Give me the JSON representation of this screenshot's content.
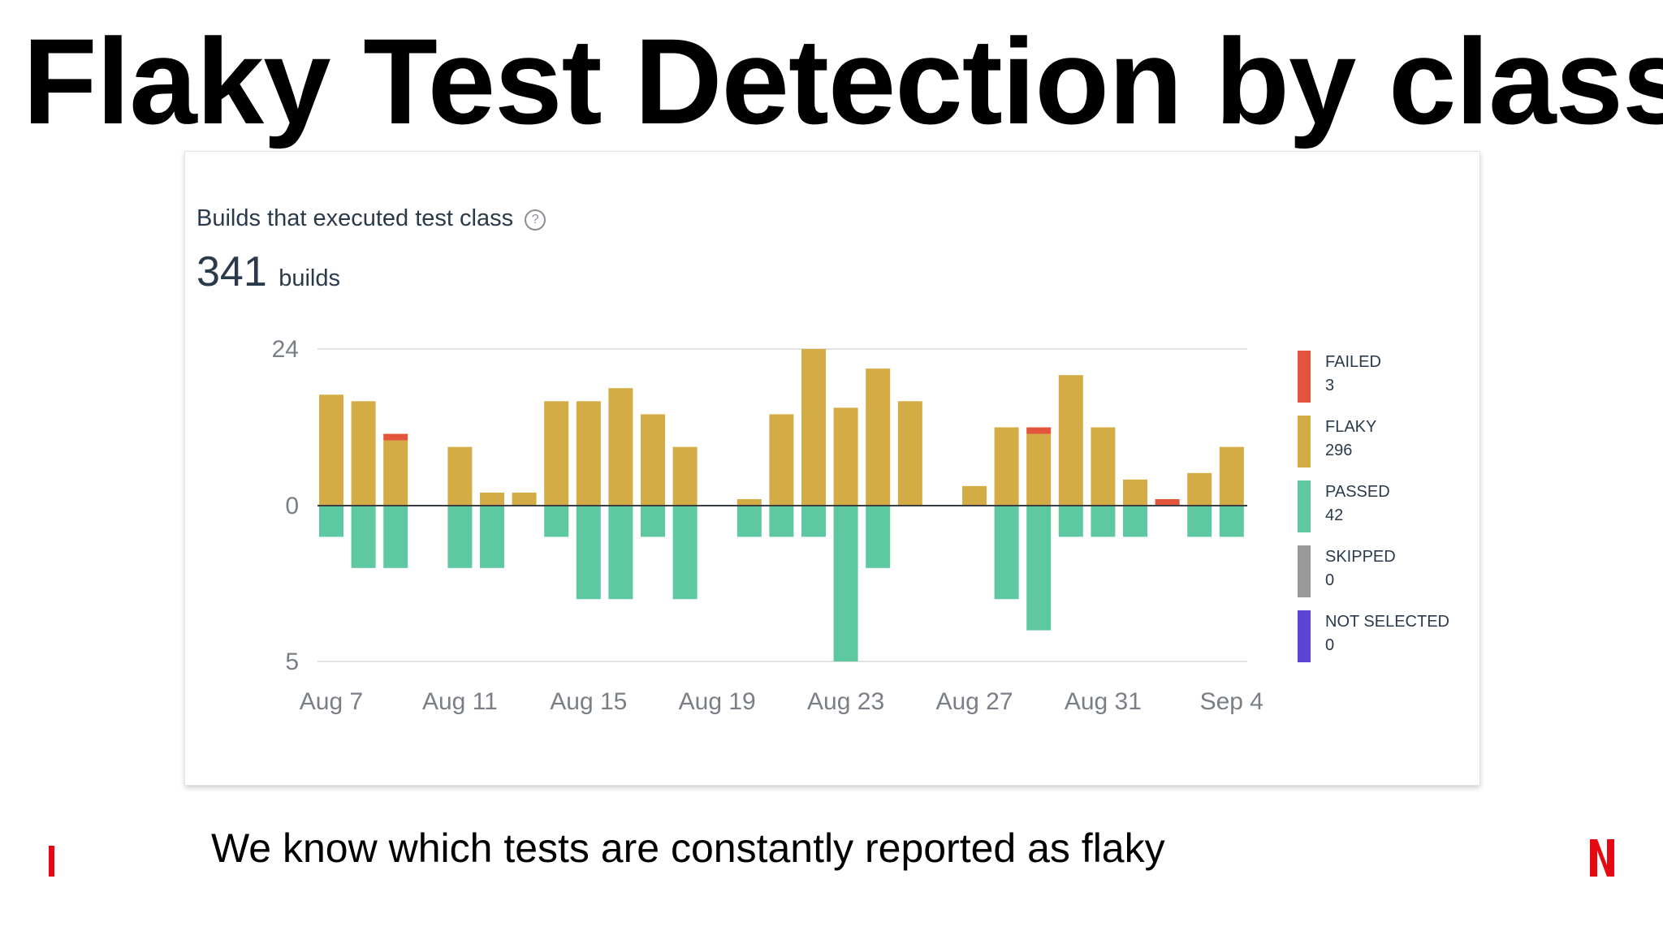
{
  "slide": {
    "title": "Flaky Test Detection by class",
    "caption": "We know which tests are constantly reported as flaky"
  },
  "card": {
    "heading": "Builds that executed test class",
    "help_icon": "question-circle-icon",
    "count": "341",
    "count_unit": "builds"
  },
  "colors": {
    "failed": "#e2553a",
    "flaky": "#d4ac45",
    "passed": "#5ec9a0",
    "skipped": "#9a9a9a",
    "not_selected": "#5b45d6",
    "brand": "#e50914"
  },
  "chart_data": {
    "type": "bar",
    "stacked": true,
    "diverging": true,
    "y_tick_labels": [
      "24",
      "0",
      "5"
    ],
    "ylim_top": [
      0,
      24
    ],
    "ylim_bottom": [
      0,
      5
    ],
    "grid": true,
    "legend_position": "right",
    "x_tick_labels": [
      "Aug 7",
      "Aug 11",
      "Aug 15",
      "Aug 19",
      "Aug 23",
      "Aug 27",
      "Aug 31",
      "Sep 4"
    ],
    "x_tick_days": [
      0,
      4,
      8,
      12,
      16,
      20,
      24,
      28
    ],
    "days": [
      "Aug 7",
      "Aug 8",
      "Aug 9",
      "Aug 10",
      "Aug 11",
      "Aug 12",
      "Aug 13",
      "Aug 14",
      "Aug 15",
      "Aug 16",
      "Aug 17",
      "Aug 18",
      "Aug 19",
      "Aug 20",
      "Aug 21",
      "Aug 22",
      "Aug 23",
      "Aug 24",
      "Aug 25",
      "Aug 26",
      "Aug 27",
      "Aug 28",
      "Aug 29",
      "Aug 30",
      "Aug 31",
      "Sep 1",
      "Sep 2",
      "Sep 3",
      "Sep 4"
    ],
    "series": [
      {
        "name": "FAILED",
        "values": [
          0,
          0,
          1,
          0,
          0,
          0,
          0,
          0,
          0,
          0,
          0,
          0,
          0,
          0,
          0,
          0,
          0,
          0,
          0,
          0,
          0,
          0,
          1,
          0,
          0,
          0,
          1,
          0,
          0
        ]
      },
      {
        "name": "FLAKY",
        "values": [
          17,
          16,
          10,
          0,
          9,
          2,
          2,
          16,
          16,
          18,
          14,
          9,
          0,
          1,
          14,
          24,
          15,
          21,
          16,
          0,
          3,
          12,
          11,
          20,
          12,
          4,
          0,
          5,
          9
        ]
      },
      {
        "name": "PASSED",
        "values": [
          1,
          2,
          2,
          0,
          2,
          2,
          0,
          1,
          3,
          3,
          1,
          3,
          0,
          1,
          1,
          1,
          5,
          2,
          0,
          0,
          0,
          3,
          4,
          1,
          1,
          1,
          0,
          1,
          1
        ]
      }
    ],
    "legend": [
      {
        "label": "FAILED",
        "total": "3"
      },
      {
        "label": "FLAKY",
        "total": "296"
      },
      {
        "label": "PASSED",
        "total": "42"
      },
      {
        "label": "SKIPPED",
        "total": "0"
      },
      {
        "label": "NOT SELECTED",
        "total": "0"
      }
    ]
  }
}
